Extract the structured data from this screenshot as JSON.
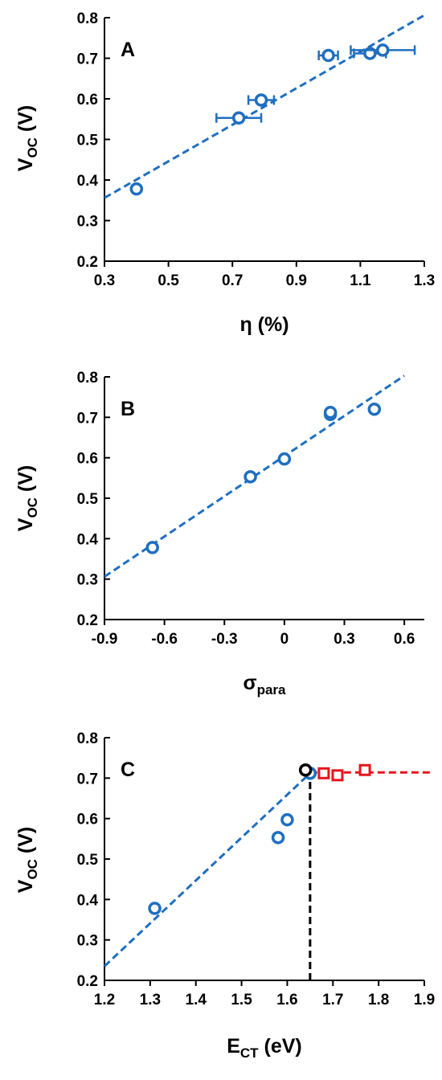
{
  "colors": {
    "blue": "#1f6fc0",
    "red": "#e8141c",
    "black": "#000000"
  },
  "chart_data": [
    {
      "type": "scatter",
      "panel_label": "A",
      "xlabel": "η  (%)",
      "ylabel_main": "V",
      "ylabel_sub": "OC",
      "ylabel_rest": " (V)",
      "xlim": [
        0.3,
        1.3
      ],
      "ylim": [
        0.2,
        0.8
      ],
      "xticks": [
        "0.3",
        "0.5",
        "0.7",
        "0.9",
        "1.1",
        "1.3"
      ],
      "yticks": [
        "0.2",
        "0.3",
        "0.4",
        "0.5",
        "0.6",
        "0.7",
        "0.8"
      ],
      "series": [
        {
          "marker": "circle",
          "color": "#1f6fc0",
          "points": [
            {
              "x": 0.4,
              "y": 0.378,
              "xerr": 0.01
            },
            {
              "x": 0.72,
              "y": 0.553,
              "xerr": 0.07
            },
            {
              "x": 0.79,
              "y": 0.597,
              "xerr": 0.04
            },
            {
              "x": 1.0,
              "y": 0.707,
              "xerr": 0.03
            },
            {
              "x": 1.13,
              "y": 0.712,
              "xerr": 0.05
            },
            {
              "x": 1.17,
              "y": 0.72,
              "xerr": 0.1
            }
          ]
        }
      ],
      "fits": [
        {
          "color": "#1f6fc0",
          "dashed": true,
          "from": [
            0.3,
            0.356
          ],
          "to": [
            1.3,
            0.806
          ]
        }
      ]
    },
    {
      "type": "scatter",
      "panel_label": "B",
      "xlabel_main": "σ",
      "xlabel_sub": "para",
      "ylabel_main": "V",
      "ylabel_sub": "OC",
      "ylabel_rest": " (V)",
      "xlim": [
        -0.9,
        0.7
      ],
      "ylim": [
        0.2,
        0.8
      ],
      "xticks": [
        "-0.9",
        "-0.6",
        "-0.3",
        "0",
        "0.3",
        "0.6"
      ],
      "xtick_values": [
        -0.9,
        -0.6,
        -0.3,
        0,
        0.3,
        0.6
      ],
      "yticks": [
        "0.2",
        "0.3",
        "0.4",
        "0.5",
        "0.6",
        "0.7",
        "0.8"
      ],
      "series": [
        {
          "marker": "circle",
          "color": "#1f6fc0",
          "points": [
            {
              "x": -0.66,
              "y": 0.378
            },
            {
              "x": -0.17,
              "y": 0.553
            },
            {
              "x": 0.0,
              "y": 0.597
            },
            {
              "x": 0.23,
              "y": 0.707
            },
            {
              "x": 0.23,
              "y": 0.712
            },
            {
              "x": 0.45,
              "y": 0.72
            }
          ]
        }
      ],
      "fits": [
        {
          "color": "#1f6fc0",
          "dashed": true,
          "from": [
            -0.9,
            0.306
          ],
          "to": [
            0.6,
            0.803
          ]
        }
      ]
    },
    {
      "type": "scatter",
      "panel_label": "C",
      "xlabel_main": "E",
      "xlabel_sub": "CT",
      "xlabel_rest": " (eV)",
      "ylabel_main": "V",
      "ylabel_sub": "OC",
      "ylabel_rest": " (V)",
      "xlim": [
        1.2,
        1.9
      ],
      "ylim": [
        0.2,
        0.8
      ],
      "xticks": [
        "1.2",
        "1.3",
        "1.4",
        "1.5",
        "1.6",
        "1.7",
        "1.8",
        "1.9"
      ],
      "yticks": [
        "0.2",
        "0.3",
        "0.4",
        "0.5",
        "0.6",
        "0.7",
        "0.8"
      ],
      "series": [
        {
          "marker": "circle",
          "color": "#1f6fc0",
          "points": [
            {
              "x": 1.31,
              "y": 0.378
            },
            {
              "x": 1.58,
              "y": 0.553
            },
            {
              "x": 1.6,
              "y": 0.597
            },
            {
              "x": 1.65,
              "y": 0.712
            }
          ]
        },
        {
          "marker": "circle",
          "color": "#000000",
          "points": [
            {
              "x": 1.64,
              "y": 0.72
            }
          ]
        },
        {
          "marker": "square",
          "color": "#e8141c",
          "points": [
            {
              "x": 1.68,
              "y": 0.712,
              "xerr": 0.01
            },
            {
              "x": 1.71,
              "y": 0.707,
              "xerr": 0.01
            },
            {
              "x": 1.77,
              "y": 0.72,
              "xerr": 0.01
            }
          ]
        }
      ],
      "fits": [
        {
          "color": "#1f6fc0",
          "dashed": true,
          "from": [
            1.2,
            0.235
          ],
          "to": [
            1.65,
            0.712
          ]
        },
        {
          "color": "#e8141c",
          "dashed": true,
          "from": [
            1.65,
            0.714
          ],
          "to": [
            1.92,
            0.714
          ]
        },
        {
          "color": "#000000",
          "dashed": true,
          "from": [
            1.65,
            0.2
          ],
          "to": [
            1.65,
            0.71
          ]
        }
      ]
    }
  ]
}
